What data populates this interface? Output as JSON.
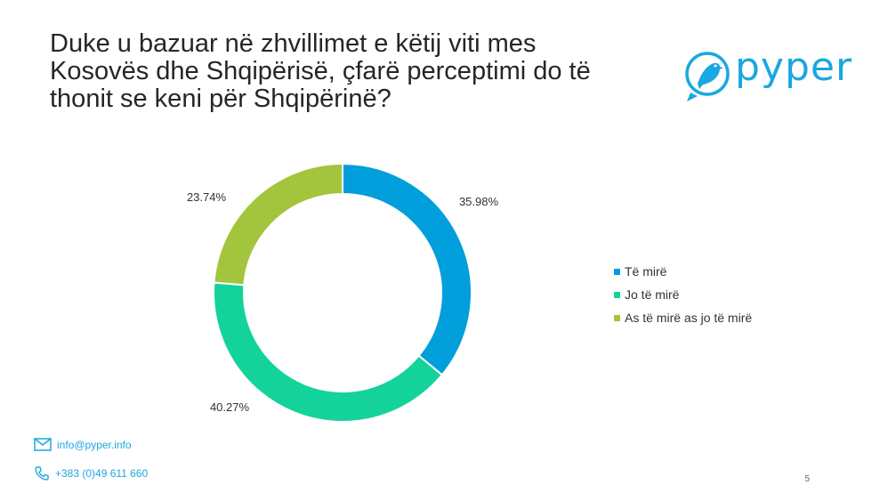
{
  "slide": {
    "title_lines": [
      "Duke u bazuar në zhvillimet e këtij viti mes",
      "Kosovës dhe Shqipërisë, çfarë perceptimi do të",
      "thonit se keni për Shqipërinë?"
    ],
    "logo_text": "pyper",
    "email": "info@pyper.info",
    "phone": "+383 (0)49 611 660",
    "page_number": "5",
    "icons": {
      "logo": "bird-logo-icon",
      "email": "envelope-icon",
      "phone": "phone-icon"
    },
    "brand_color": "#1ba7e1"
  },
  "chart_data": {
    "type": "pie",
    "variant": "donut",
    "title": "",
    "categories": [
      "Të mirë",
      "Jo të mirë",
      "As të mirë as jo të mirë"
    ],
    "values": [
      35.98,
      40.27,
      23.74
    ],
    "labels": [
      "35.98%",
      "40.27%",
      "23.74%"
    ],
    "colors": [
      "#009fdb",
      "#14d39a",
      "#a3c53d"
    ],
    "legend_position": "right"
  }
}
